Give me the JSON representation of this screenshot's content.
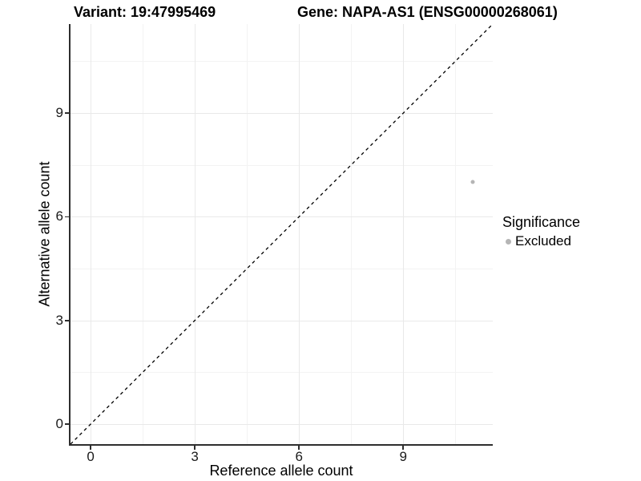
{
  "chart_data": {
    "type": "scatter",
    "title_variant": "Variant: 19:47995469",
    "title_gene": "Gene: NAPA-AS1 (ENSG00000268061)",
    "xlabel": "Reference allele count",
    "ylabel": "Alternative allele count",
    "xlim": [
      -0.578,
      11.578
    ],
    "ylim": [
      -0.578,
      11.578
    ],
    "x_ticks": [
      0,
      3,
      6,
      9
    ],
    "y_ticks": [
      0,
      3,
      6,
      9
    ],
    "x_minor_ticks": [
      1.5,
      4.5,
      7.5,
      10.5
    ],
    "y_minor_ticks": [
      1.5,
      4.5,
      7.5,
      10.5
    ],
    "grid": true,
    "identity_line": {
      "slope": 1,
      "intercept": 0,
      "style": "dashed",
      "color": "#000000"
    },
    "series": [
      {
        "name": "Excluded",
        "color": "#b5b5b5",
        "points": [
          {
            "x": 11,
            "y": 7
          }
        ]
      }
    ],
    "legend": {
      "position": "right",
      "title": "Significance",
      "items": [
        {
          "label": "Excluded",
          "color": "#b5b5b5"
        }
      ]
    },
    "colors": {
      "background": "#ffffff",
      "grid_major": "#e9e9e9",
      "grid_minor": "#f3f3f3",
      "axis_line": "#2e2e2e",
      "point": "#b5b5b5"
    }
  }
}
